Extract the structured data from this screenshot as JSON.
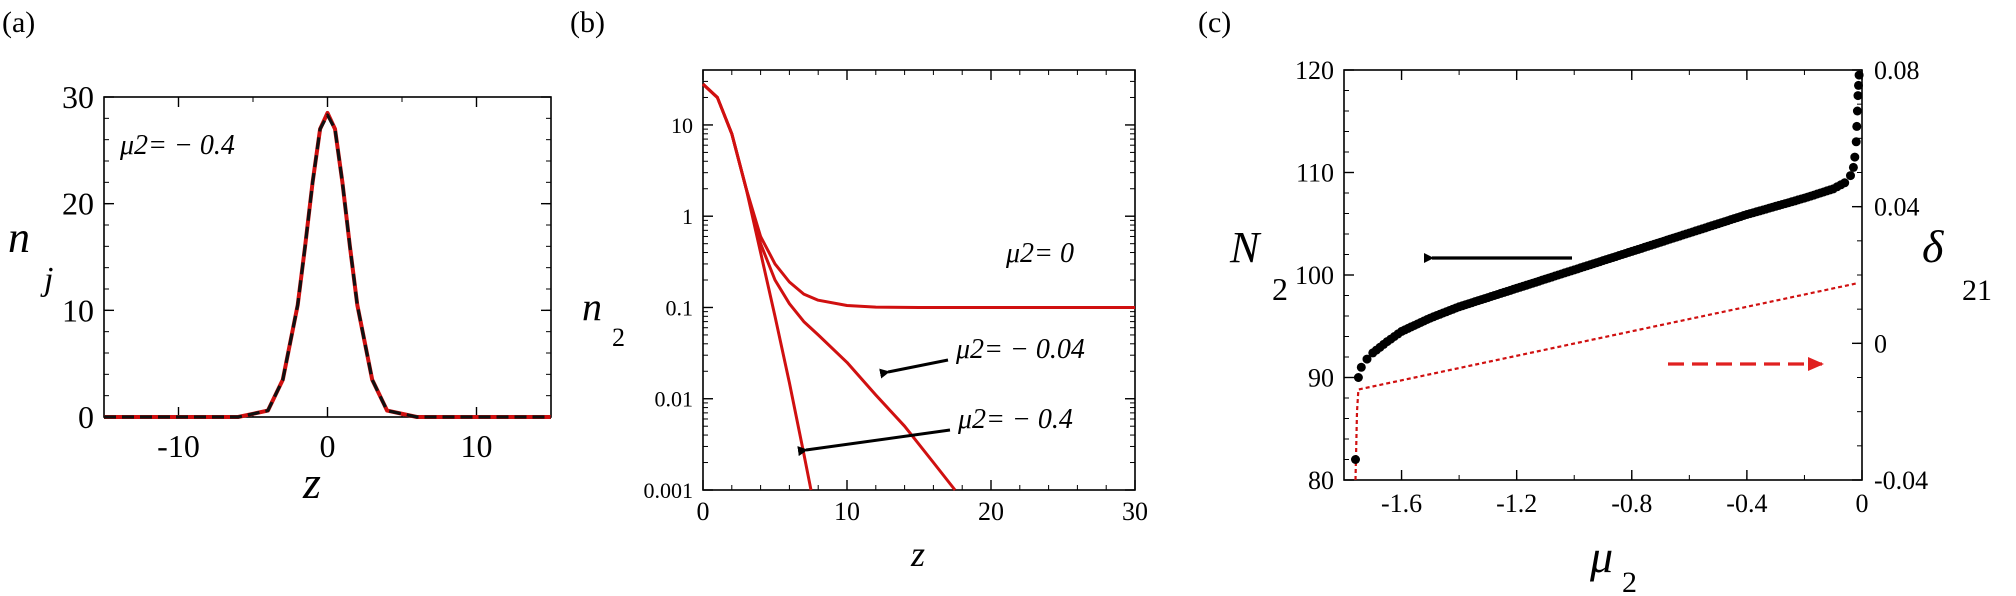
{
  "figure": {
    "panels": [
      {
        "label": "(a)",
        "ylabel_main": "n",
        "ylabel_sub": "j",
        "xlabel": "z"
      },
      {
        "label": "(b)",
        "ylabel_main": "n",
        "ylabel_sub": "2",
        "xlabel": "z"
      },
      {
        "label": "(c)",
        "ylabel_main": "N",
        "ylabel_sub": "2",
        "xlabel_main": "μ",
        "xlabel_sub": "2",
        "y2label_main": "δ",
        "y2label_sub": "21"
      }
    ]
  },
  "chart_data": [
    {
      "type": "line",
      "panel": "(a)",
      "xlabel": "z",
      "ylabel": "n_j",
      "xlim": [
        -15,
        15
      ],
      "ylim": [
        0,
        30
      ],
      "xticks": [
        "-10",
        "0",
        "10"
      ],
      "yticks": [
        "0",
        "10",
        "20",
        "30"
      ],
      "annotations": [
        {
          "text": "μ2= − 0.4"
        }
      ],
      "series": [
        {
          "style": "solid",
          "color": "#d01010",
          "x": [
            -15,
            -6,
            -4,
            -3,
            -2,
            -1.5,
            -1,
            -0.5,
            0,
            0.5,
            1,
            1.5,
            2,
            3,
            4,
            6,
            15
          ],
          "y": [
            0,
            0,
            0.6,
            3.5,
            10.5,
            16,
            22,
            27,
            28.5,
            27,
            22,
            16,
            10.5,
            3.5,
            0.6,
            0,
            0
          ]
        },
        {
          "style": "dashed",
          "color": "#111111",
          "x": [
            -15,
            -6,
            -4,
            -3,
            -2,
            -1.5,
            -1,
            -0.5,
            0,
            0.5,
            1,
            1.5,
            2,
            3,
            4,
            6,
            15
          ],
          "y": [
            0,
            0,
            0.6,
            3.5,
            10.5,
            16,
            22,
            27,
            28.3,
            27,
            22,
            16,
            10.5,
            3.5,
            0.6,
            0,
            0
          ]
        }
      ]
    },
    {
      "type": "line",
      "panel": "(b)",
      "xlabel": "z",
      "ylabel": "n_2",
      "yscale": "log",
      "xlim": [
        0,
        30
      ],
      "ylim": [
        0.001,
        40
      ],
      "xticks": [
        "0",
        "10",
        "20",
        "30"
      ],
      "yticks": [
        "0.001",
        "0.01",
        "0.1",
        "1",
        "10"
      ],
      "annotations": [
        {
          "text": "μ2= 0"
        },
        {
          "text": "μ2= − 0.04"
        },
        {
          "text": "μ2= − 0.4"
        }
      ],
      "series": [
        {
          "label": "μ2= 0",
          "color": "#d01010",
          "x": [
            0,
            1,
            2,
            3,
            4,
            5,
            6,
            7,
            8,
            10,
            12,
            15,
            20,
            30
          ],
          "y": [
            28,
            20,
            8,
            2,
            0.6,
            0.3,
            0.19,
            0.14,
            0.12,
            0.105,
            0.101,
            0.1,
            0.1,
            0.1
          ]
        },
        {
          "label": "μ2= − 0.04",
          "color": "#d01010",
          "x": [
            0,
            1,
            2,
            3,
            4,
            5,
            6,
            7,
            8,
            10,
            12,
            14,
            16,
            17.5
          ],
          "y": [
            28,
            20,
            8,
            2,
            0.5,
            0.2,
            0.11,
            0.07,
            0.05,
            0.025,
            0.011,
            0.005,
            0.002,
            0.001
          ]
        },
        {
          "label": "μ2= − 0.4",
          "color": "#d01010",
          "x": [
            0,
            1,
            2,
            3,
            4,
            5,
            6,
            7,
            7.5
          ],
          "y": [
            28,
            20,
            8,
            2,
            0.4,
            0.08,
            0.015,
            0.0025,
            0.001
          ]
        }
      ]
    },
    {
      "type": "scatter",
      "panel": "(c)",
      "xlabel": "μ2",
      "ylabel": "N2",
      "y2label": "δ21",
      "xlim": [
        -1.8,
        0
      ],
      "ylim": [
        80,
        120
      ],
      "y2lim": [
        -0.04,
        0.08
      ],
      "xticks": [
        "-1.6",
        "-1.2",
        "-0.8",
        "-0.4",
        "0"
      ],
      "yticks": [
        "80",
        "90",
        "100",
        "110",
        "120"
      ],
      "y2ticks": [
        "-0.04",
        "0",
        "0.04",
        "0.08"
      ],
      "series": [
        {
          "axis": "left",
          "marker": "dot",
          "color": "#000000",
          "x": [
            -1.76,
            -1.75,
            -1.74,
            -1.72,
            -1.7,
            -1.65,
            -1.6,
            -1.5,
            -1.4,
            -1.3,
            -1.2,
            -1.1,
            -1.0,
            -0.9,
            -0.8,
            -0.7,
            -0.6,
            -0.5,
            -0.4,
            -0.3,
            -0.2,
            -0.1,
            -0.06,
            -0.04,
            -0.03,
            -0.025,
            -0.02,
            -0.018,
            -0.016,
            -0.014,
            -0.012,
            -0.01
          ],
          "y": [
            82,
            90,
            91,
            91.8,
            92.4,
            93.5,
            94.5,
            95.8,
            96.9,
            97.8,
            98.7,
            99.6,
            100.5,
            101.4,
            102.3,
            103.2,
            104.1,
            105,
            105.9,
            106.7,
            107.5,
            108.4,
            109,
            109.7,
            110.5,
            111.5,
            113,
            114.5,
            116,
            117.5,
            118.5,
            119.5
          ]
        },
        {
          "axis": "right",
          "style": "dotted",
          "color": "#d01010",
          "x": [
            -1.76,
            -1.755,
            -1.75,
            -0.02
          ],
          "y": [
            -0.04,
            -0.02,
            -0.0135,
            0.0175
          ]
        }
      ],
      "arrows": [
        {
          "direction": "left",
          "color": "#000000",
          "style": "solid"
        },
        {
          "direction": "right",
          "color": "#e02020",
          "style": "dashed"
        }
      ]
    }
  ]
}
